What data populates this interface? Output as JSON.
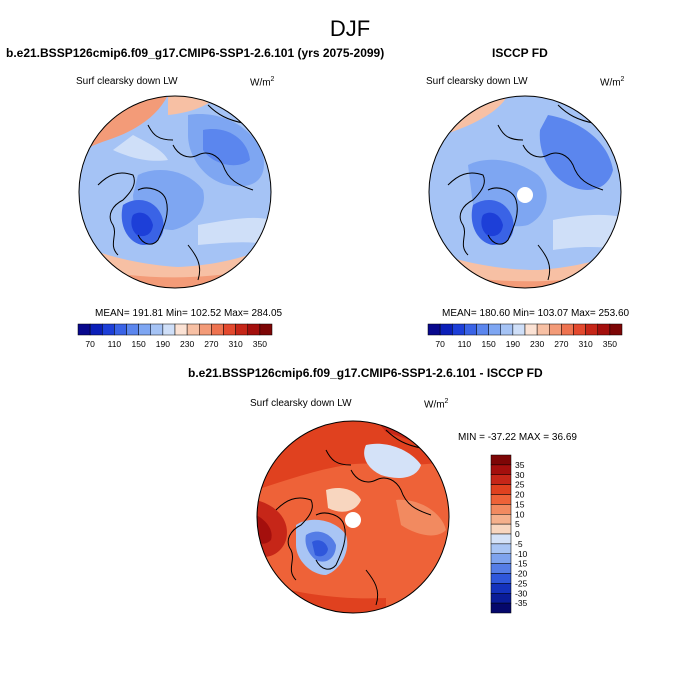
{
  "figure": {
    "title": "DJF"
  },
  "panels": [
    {
      "id": "model",
      "title": "b.e21.BSSP126cmip6.f09_g17.CMIP6-SSP1-2.6.101 (yrs 2075-2099)",
      "variable": "Surf clearsky down LW",
      "units": "W/m",
      "units_sup": "2",
      "stats": "MEAN= 191.81  Min= 102.52  Max= 284.05",
      "colorbar_ticks": [
        "70",
        "110",
        "150",
        "190",
        "230",
        "270",
        "310",
        "350"
      ]
    },
    {
      "id": "obs",
      "title": "ISCCP FD",
      "variable": "Surf clearsky down LW",
      "units": "W/m",
      "units_sup": "2",
      "stats": "MEAN= 180.60  Min= 103.07  Max= 253.60",
      "colorbar_ticks": [
        "70",
        "110",
        "150",
        "190",
        "230",
        "270",
        "310",
        "350"
      ]
    },
    {
      "id": "diff",
      "title": "b.e21.BSSP126cmip6.f09_g17.CMIP6-SSP1-2.6.101 - ISCCP FD",
      "variable": "Surf clearsky down LW",
      "units": "W/m",
      "units_sup": "2",
      "stats": "MIN = -37.22 MAX =  36.69",
      "colorbar_ticks": [
        "35",
        "30",
        "25",
        "20",
        "15",
        "10",
        "5",
        "0",
        "-5",
        "-10",
        "-15",
        "-20",
        "-25",
        "-30",
        "-35"
      ]
    }
  ],
  "colors": {
    "abs_scale": [
      "#08088c",
      "#0b1fb8",
      "#1d3fd8",
      "#3a63e6",
      "#5b86ee",
      "#7ea6f2",
      "#a5c3f5",
      "#cfdff8",
      "#fbe2d4",
      "#f7c0a4",
      "#f39b78",
      "#ee7350",
      "#e3492e",
      "#c62618",
      "#a40f0d",
      "#7d0606"
    ],
    "diff_scale": [
      "#7d0606",
      "#a40f0d",
      "#c62618",
      "#e0411f",
      "#ee6238",
      "#f28a60",
      "#f5b08c",
      "#f8d6bf",
      "#d4e2f8",
      "#a9c5f4",
      "#7ea3ee",
      "#557de6",
      "#2f57db",
      "#1432bd",
      "#0a1c98",
      "#05086b"
    ]
  }
}
